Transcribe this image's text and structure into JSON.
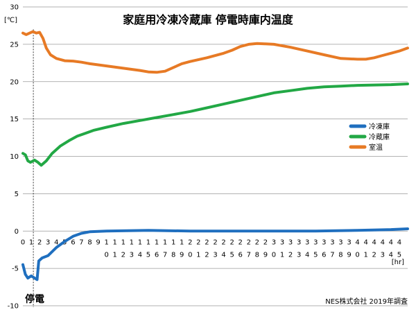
{
  "chart_data": {
    "type": "line",
    "title": "家庭用冷凍冷蔵庫 停電時庫内温度",
    "ylabel": "[℃]",
    "xunit": "[hr]",
    "ylim": [
      -10,
      30
    ],
    "yticks": [
      30,
      25,
      20,
      15,
      10,
      5,
      0,
      -5,
      -10
    ],
    "xlim": [
      0,
      46
    ],
    "grid": true,
    "legend_position": "right",
    "event_marker": {
      "x": 1.25,
      "label": "停電"
    },
    "source_note": "NES株式会社 2019年調査",
    "x_tick_labels": [
      [
        "0"
      ],
      [
        "1"
      ],
      [
        "2"
      ],
      [
        "3"
      ],
      [
        "4"
      ],
      [
        "5"
      ],
      [
        "6"
      ],
      [
        "7"
      ],
      [
        "8"
      ],
      [
        "9"
      ],
      [
        "1",
        "0"
      ],
      [
        "1",
        "1"
      ],
      [
        "1",
        "2"
      ],
      [
        "1",
        "3"
      ],
      [
        "1",
        "4"
      ],
      [
        "1",
        "5"
      ],
      [
        "1",
        "6"
      ],
      [
        "1",
        "7"
      ],
      [
        "1",
        "8"
      ],
      [
        "1",
        "9"
      ],
      [
        "2",
        "0"
      ],
      [
        "2",
        "1"
      ],
      [
        "2",
        "2"
      ],
      [
        "2",
        "3"
      ],
      [
        "2",
        "4"
      ],
      [
        "2",
        "5"
      ],
      [
        "2",
        "6"
      ],
      [
        "2",
        "7"
      ],
      [
        "2",
        "8"
      ],
      [
        "2",
        "9"
      ],
      [
        "3",
        "0"
      ],
      [
        "3",
        "1"
      ],
      [
        "3",
        "2"
      ],
      [
        "3",
        "3"
      ],
      [
        "3",
        "4"
      ],
      [
        "3",
        "5"
      ],
      [
        "3",
        "6"
      ],
      [
        "3",
        "7"
      ],
      [
        "3",
        "8"
      ],
      [
        "3",
        "9"
      ],
      [
        "4",
        "0"
      ],
      [
        "4",
        "1"
      ],
      [
        "4",
        "2"
      ],
      [
        "4",
        "3"
      ],
      [
        "4",
        "4"
      ],
      [
        "4",
        "5"
      ]
    ],
    "series": [
      {
        "name": "冷凍庫",
        "color": "#1f6fbf",
        "points": [
          [
            0,
            -4.5
          ],
          [
            0.3,
            -5.8
          ],
          [
            0.6,
            -6.3
          ],
          [
            1.0,
            -6.0
          ],
          [
            1.4,
            -6.3
          ],
          [
            1.7,
            -6.5
          ],
          [
            1.9,
            -4.0
          ],
          [
            2.3,
            -3.6
          ],
          [
            3.0,
            -3.3
          ],
          [
            4.0,
            -2.2
          ],
          [
            5.0,
            -1.4
          ],
          [
            6.0,
            -0.7
          ],
          [
            7.0,
            -0.3
          ],
          [
            8.0,
            -0.1
          ],
          [
            10,
            0.0
          ],
          [
            15,
            0.1
          ],
          [
            20,
            0.0
          ],
          [
            25,
            0.0
          ],
          [
            30,
            0.0
          ],
          [
            35,
            0.0
          ],
          [
            40,
            0.1
          ],
          [
            44,
            0.2
          ],
          [
            46,
            0.3
          ]
        ]
      },
      {
        "name": "冷蔵庫",
        "color": "#22a845",
        "points": [
          [
            0,
            10.4
          ],
          [
            0.3,
            10.2
          ],
          [
            0.6,
            9.4
          ],
          [
            0.9,
            9.2
          ],
          [
            1.4,
            9.5
          ],
          [
            1.8,
            9.2
          ],
          [
            2.2,
            8.8
          ],
          [
            2.8,
            9.4
          ],
          [
            3.5,
            10.4
          ],
          [
            4.5,
            11.4
          ],
          [
            5.5,
            12.1
          ],
          [
            6.5,
            12.7
          ],
          [
            7.5,
            13.1
          ],
          [
            8.5,
            13.5
          ],
          [
            10,
            13.9
          ],
          [
            12,
            14.4
          ],
          [
            14,
            14.8
          ],
          [
            16,
            15.2
          ],
          [
            18,
            15.6
          ],
          [
            20,
            16.0
          ],
          [
            22,
            16.5
          ],
          [
            24,
            17.0
          ],
          [
            26,
            17.5
          ],
          [
            28,
            18.0
          ],
          [
            30,
            18.5
          ],
          [
            32,
            18.8
          ],
          [
            34,
            19.1
          ],
          [
            36,
            19.3
          ],
          [
            38,
            19.4
          ],
          [
            40,
            19.5
          ],
          [
            42,
            19.55
          ],
          [
            44,
            19.6
          ],
          [
            46,
            19.7
          ]
        ]
      },
      {
        "name": "室温",
        "color": "#e77a25",
        "points": [
          [
            0,
            26.5
          ],
          [
            0.4,
            26.3
          ],
          [
            0.8,
            26.5
          ],
          [
            1.2,
            26.7
          ],
          [
            1.6,
            26.5
          ],
          [
            2.0,
            26.6
          ],
          [
            2.4,
            25.8
          ],
          [
            2.8,
            24.5
          ],
          [
            3.3,
            23.6
          ],
          [
            4.0,
            23.1
          ],
          [
            5.0,
            22.8
          ],
          [
            6.0,
            22.75
          ],
          [
            7.0,
            22.6
          ],
          [
            8.0,
            22.4
          ],
          [
            10,
            22.1
          ],
          [
            12,
            21.8
          ],
          [
            14,
            21.5
          ],
          [
            15,
            21.3
          ],
          [
            16,
            21.25
          ],
          [
            17,
            21.4
          ],
          [
            18,
            21.9
          ],
          [
            19,
            22.4
          ],
          [
            20,
            22.7
          ],
          [
            22,
            23.2
          ],
          [
            24,
            23.8
          ],
          [
            25,
            24.2
          ],
          [
            26,
            24.7
          ],
          [
            27,
            25.0
          ],
          [
            28,
            25.1
          ],
          [
            29,
            25.05
          ],
          [
            30,
            25.0
          ],
          [
            32,
            24.6
          ],
          [
            34,
            24.1
          ],
          [
            36,
            23.6
          ],
          [
            38,
            23.1
          ],
          [
            40,
            23.0
          ],
          [
            41,
            23.0
          ],
          [
            42,
            23.2
          ],
          [
            43,
            23.5
          ],
          [
            44,
            23.8
          ],
          [
            45,
            24.1
          ],
          [
            46,
            24.5
          ]
        ]
      }
    ]
  }
}
